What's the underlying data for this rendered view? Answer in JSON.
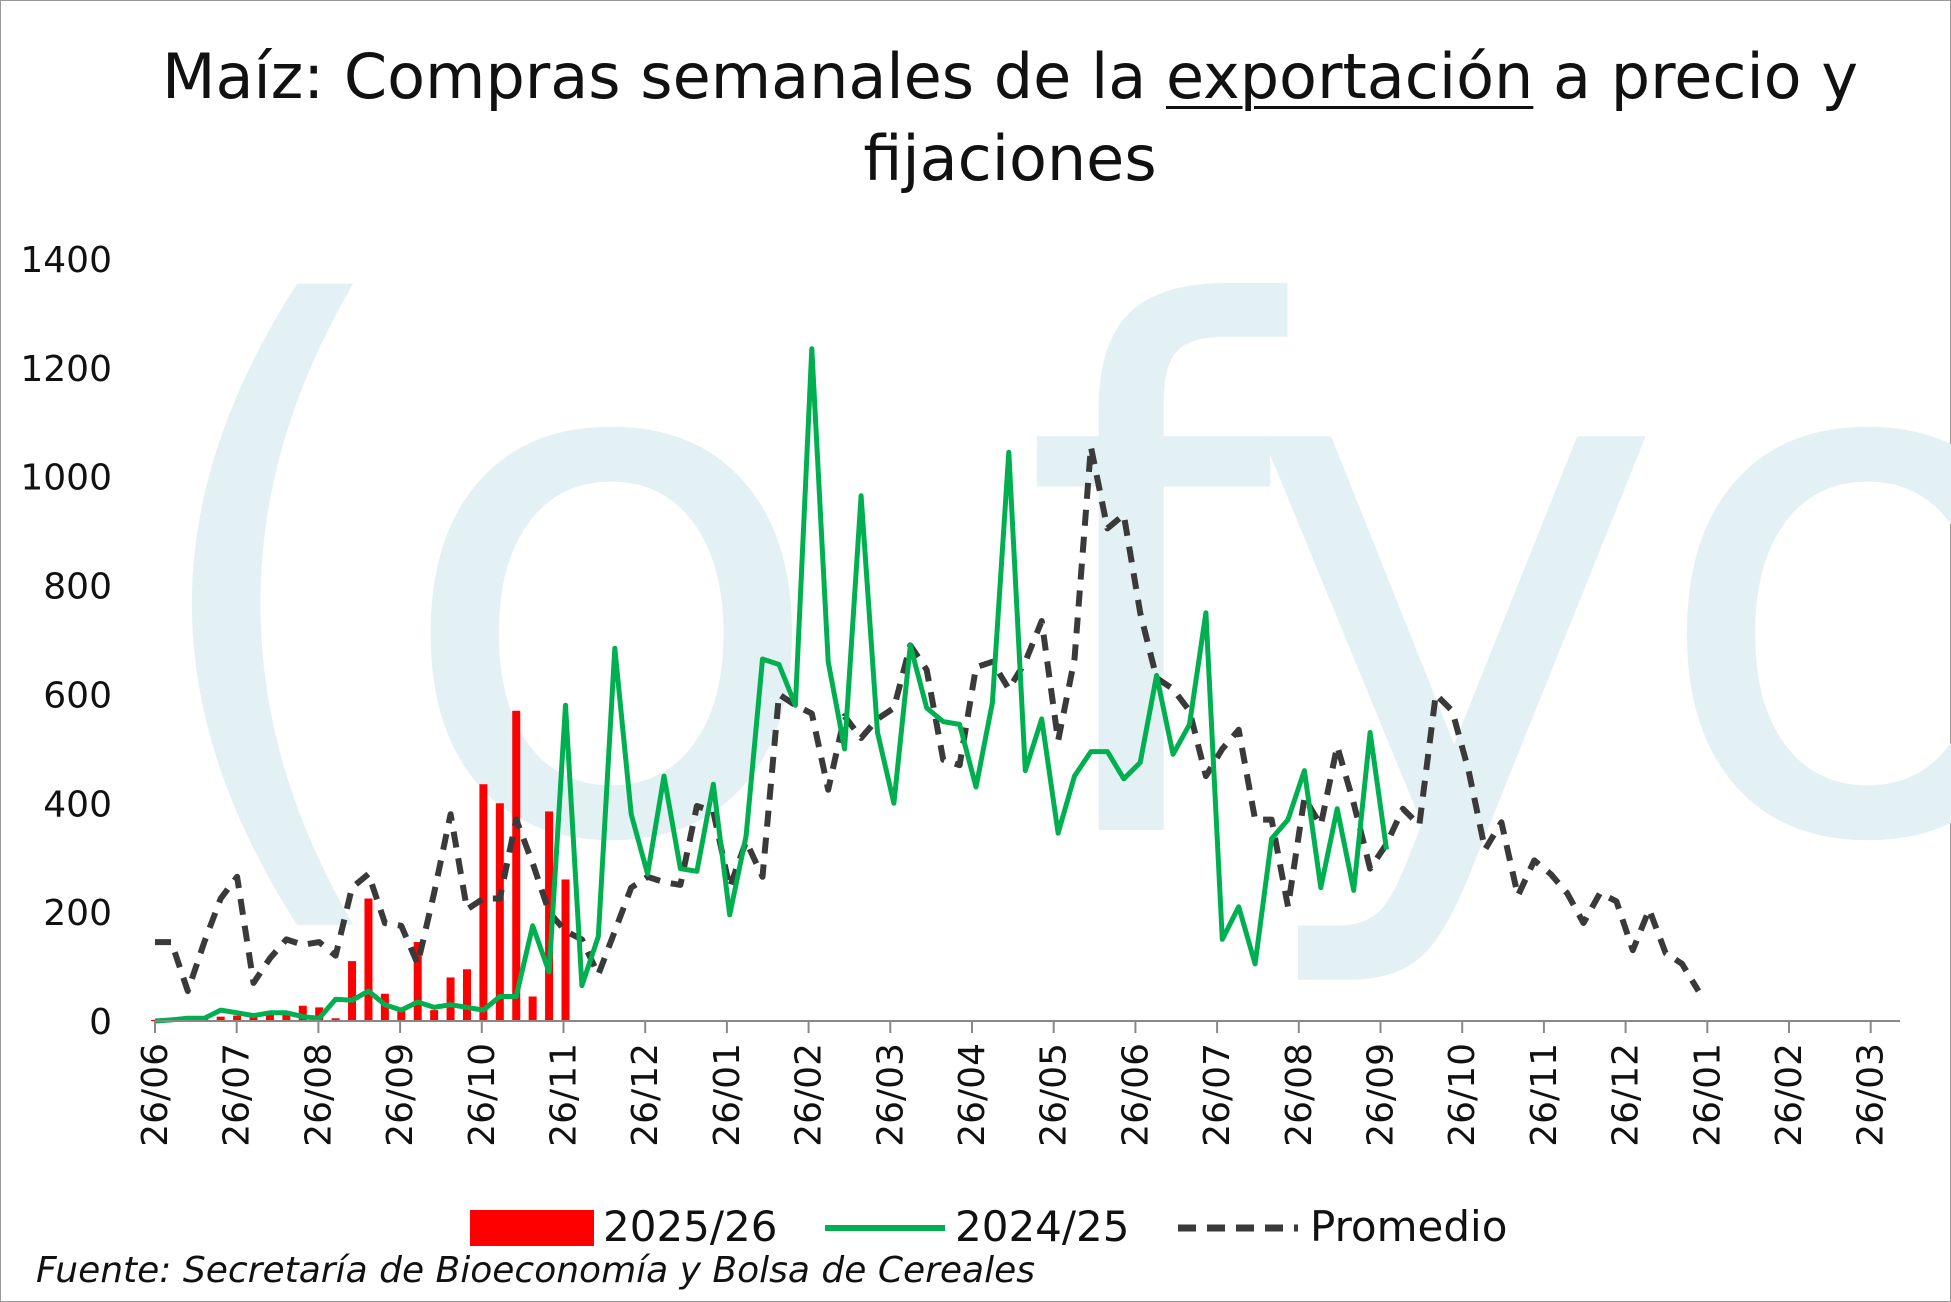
{
  "title": {
    "before": "Maíz: Compras semanales de la ",
    "underlined": "exportación",
    "after": " a precio y fijaciones"
  },
  "source": "Fuente: Secretaría de Bioeconomía y Bolsa de Cereales",
  "colors": {
    "series_2025_26": "#ff0000",
    "series_2024_25": "#00b050",
    "series_promedio": "#3a3a3a",
    "watermark": "#e3f1f4",
    "axis": "#888888"
  },
  "watermark_text": "(o fyo",
  "chart_data": {
    "type": "bar+line",
    "x_unit": "week",
    "x_tick_labels": [
      "26/06",
      "26/07",
      "26/08",
      "26/09",
      "26/10",
      "26/11",
      "26/12",
      "26/01",
      "26/02",
      "26/03",
      "26/04",
      "26/05",
      "26/06",
      "26/07",
      "26/08",
      "26/09",
      "26/10",
      "26/11",
      "26/12",
      "26/01",
      "26/02",
      "26/03"
    ],
    "ylim": [
      0,
      1400
    ],
    "y_ticks": [
      0,
      200,
      400,
      600,
      800,
      1000,
      1200,
      1400
    ],
    "grid": false,
    "legend_position": "bottom",
    "series": [
      {
        "name": "2025/26",
        "type": "bar",
        "values": [
          2,
          3,
          5,
          6,
          8,
          10,
          12,
          14,
          18,
          28,
          25,
          5,
          110,
          225,
          50,
          20,
          145,
          20,
          80,
          95,
          435,
          400,
          570,
          45,
          385,
          260
        ]
      },
      {
        "name": "2024/25",
        "type": "line",
        "values": [
          0,
          2,
          5,
          5,
          20,
          15,
          10,
          15,
          15,
          8,
          5,
          40,
          38,
          55,
          30,
          20,
          35,
          25,
          30,
          25,
          20,
          45,
          45,
          175,
          90,
          580,
          65,
          155,
          685,
          380,
          270,
          450,
          280,
          275,
          435,
          195,
          340,
          665,
          655,
          580,
          1235,
          660,
          500,
          965,
          530,
          400,
          690,
          575,
          550,
          545,
          430,
          585,
          1045,
          460,
          555,
          345,
          450,
          495,
          495,
          445,
          475,
          635,
          490,
          545,
          750,
          150,
          210,
          105,
          335,
          370,
          460,
          245,
          390,
          240,
          530,
          315
        ]
      },
      {
        "name": "Promedio",
        "type": "line",
        "style": "dashed",
        "values": [
          145,
          145,
          55,
          145,
          225,
          265,
          70,
          115,
          150,
          140,
          145,
          120,
          245,
          270,
          180,
          175,
          105,
          235,
          380,
          205,
          225,
          225,
          370,
          290,
          200,
          165,
          150,
          85,
          165,
          245,
          265,
          255,
          250,
          395,
          385,
          245,
          330,
          265,
          600,
          580,
          565,
          425,
          560,
          520,
          555,
          575,
          690,
          645,
          480,
          470,
          650,
          660,
          610,
          660,
          735,
          515,
          665,
          1055,
          905,
          930,
          750,
          630,
          610,
          570,
          450,
          500,
          535,
          370,
          370,
          210,
          410,
          360,
          505,
          400,
          280,
          325,
          390,
          360,
          600,
          570,
          460,
          315,
          365,
          230,
          295,
          270,
          235,
          180,
          235,
          220,
          130,
          205,
          125,
          105,
          55
        ]
      }
    ]
  }
}
